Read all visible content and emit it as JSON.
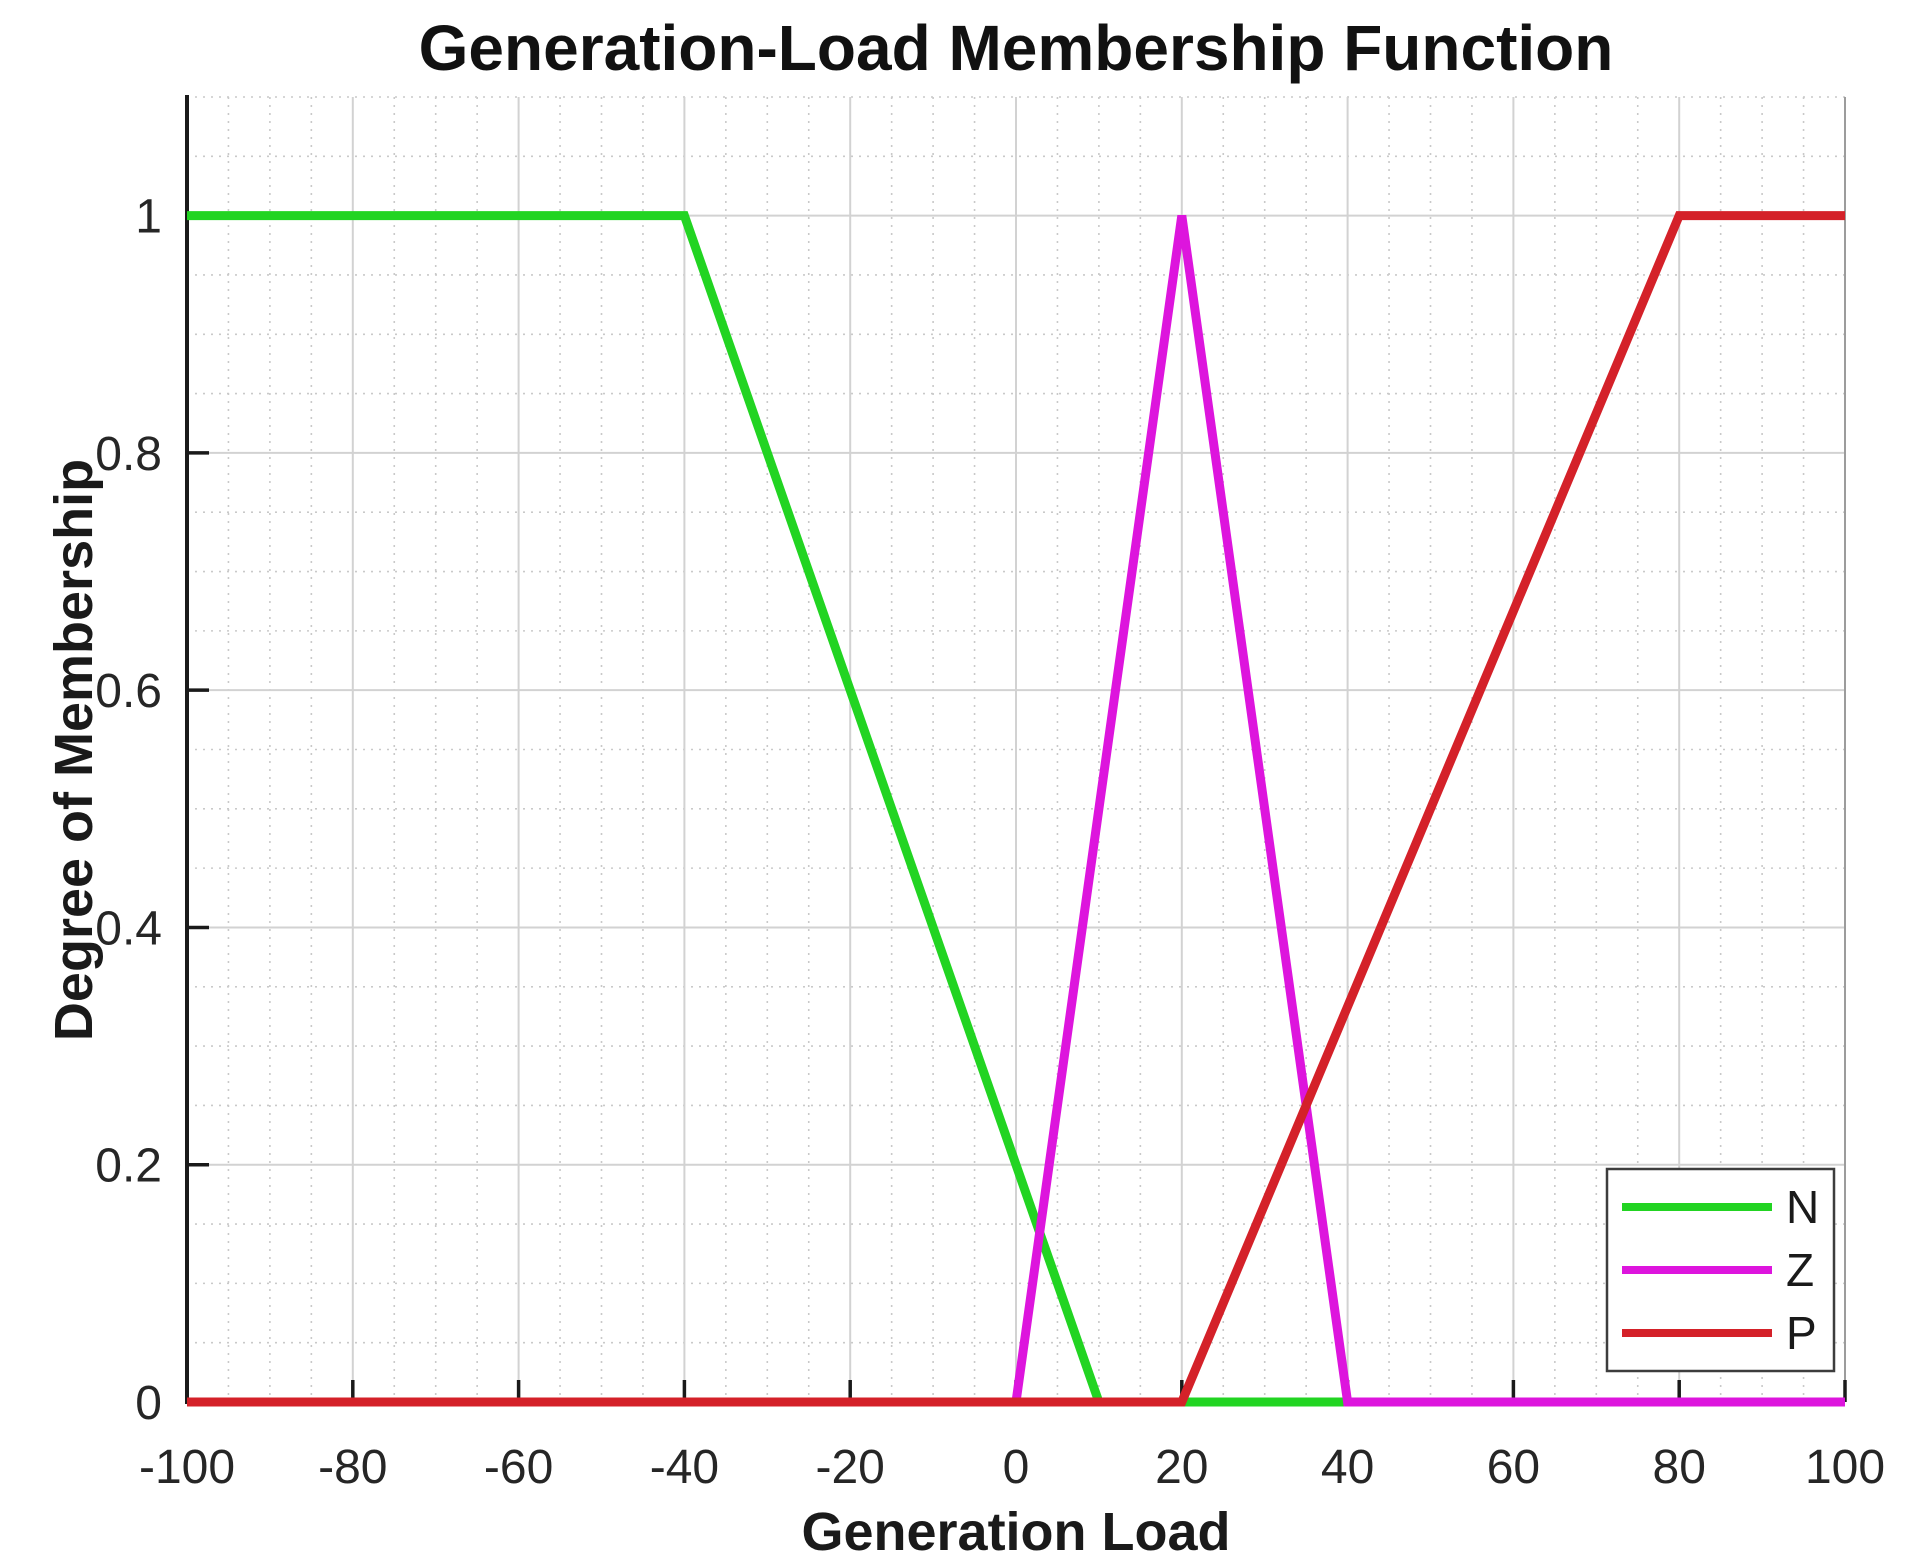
{
  "chart_data": {
    "type": "line",
    "title": "Generation-Load Membership Function",
    "xlabel": "Generation Load",
    "ylabel": "Degree of Membership",
    "xlim": [
      -100,
      100
    ],
    "ylim": [
      0,
      1.1
    ],
    "grid": "on",
    "x_tick_values": [
      -100,
      -80,
      -60,
      -40,
      -20,
      0,
      20,
      40,
      60,
      80,
      100
    ],
    "x_tick_labels": [
      "-100",
      "-80",
      "-60",
      "-40",
      "-20",
      "0",
      "20",
      "40",
      "60",
      "80",
      "100"
    ],
    "y_tick_values": [
      0,
      0.2,
      0.4,
      0.6,
      0.8,
      1
    ],
    "y_tick_labels": [
      "0",
      "0.2",
      "0.4",
      "0.6",
      "0.8",
      "1"
    ],
    "x_minor_step": 5,
    "y_minor_step": 0.05,
    "legend_position": "southeast",
    "series": [
      {
        "name": "N",
        "color": "#22d422",
        "points": [
          [
            -100,
            1
          ],
          [
            -40,
            1
          ],
          [
            10,
            0
          ],
          [
            100,
            0
          ]
        ]
      },
      {
        "name": "Z",
        "color": "#dd15dd",
        "points": [
          [
            -100,
            0
          ],
          [
            0,
            0
          ],
          [
            20,
            1
          ],
          [
            40,
            0
          ],
          [
            100,
            0
          ]
        ]
      },
      {
        "name": "P",
        "color": "#d42129",
        "points": [
          [
            -100,
            0
          ],
          [
            20,
            0
          ],
          [
            80,
            1
          ],
          [
            100,
            1
          ]
        ]
      }
    ]
  }
}
